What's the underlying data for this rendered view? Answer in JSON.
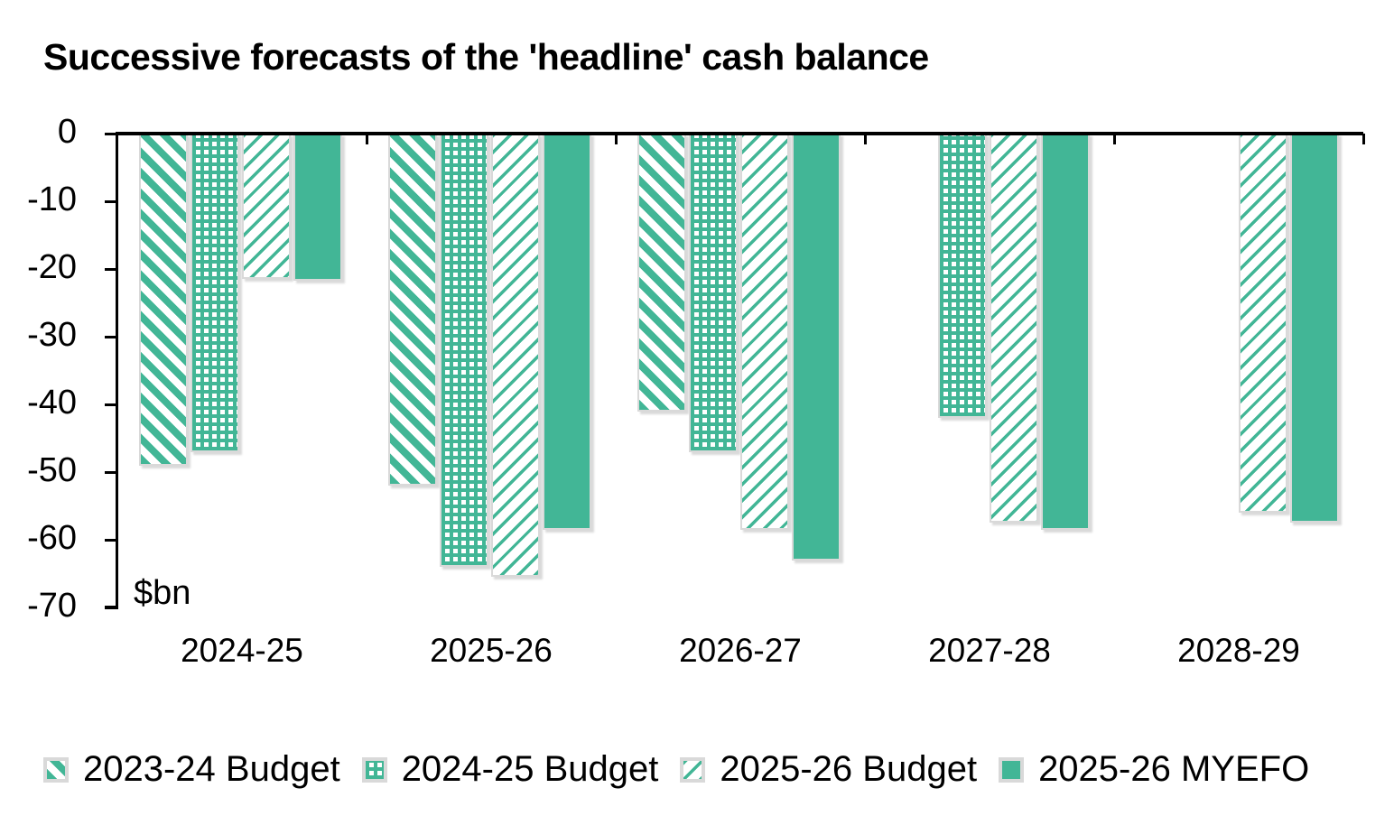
{
  "title": "Successive forecasts of the 'headline' cash balance",
  "unit_label": "$bn",
  "colors": {
    "green": "#42B696",
    "bar_border": "#D9D9D9",
    "axis": "#000000",
    "text": "#000000"
  },
  "chart_data": {
    "type": "bar",
    "title": "Successive forecasts of the 'headline' cash balance",
    "xlabel": "",
    "ylabel": "$bn",
    "ylim": [
      -70,
      0
    ],
    "yticks": [
      0,
      -10,
      -20,
      -30,
      -40,
      -50,
      -60,
      -70
    ],
    "grid": false,
    "legend_position": "bottom",
    "categories": [
      "2024-25",
      "2025-26",
      "2026-27",
      "2027-28",
      "2028-29"
    ],
    "series": [
      {
        "name": "2023-24 Budget",
        "pattern": "thick-diagonal-down",
        "values": [
          -49,
          -52,
          -41,
          null,
          null
        ]
      },
      {
        "name": "2024-25 Budget",
        "pattern": "checker-grid",
        "values": [
          -47,
          -64,
          -47,
          -42,
          null
        ]
      },
      {
        "name": "2025-26 Budget",
        "pattern": "thin-diagonal-up",
        "values": [
          -21.5,
          -65.5,
          -58.5,
          -57.5,
          -56
        ]
      },
      {
        "name": "2025-26 MYEFO",
        "pattern": "solid",
        "values": [
          -21.7,
          -58.5,
          -63,
          -58.5,
          -57.5
        ]
      }
    ]
  }
}
